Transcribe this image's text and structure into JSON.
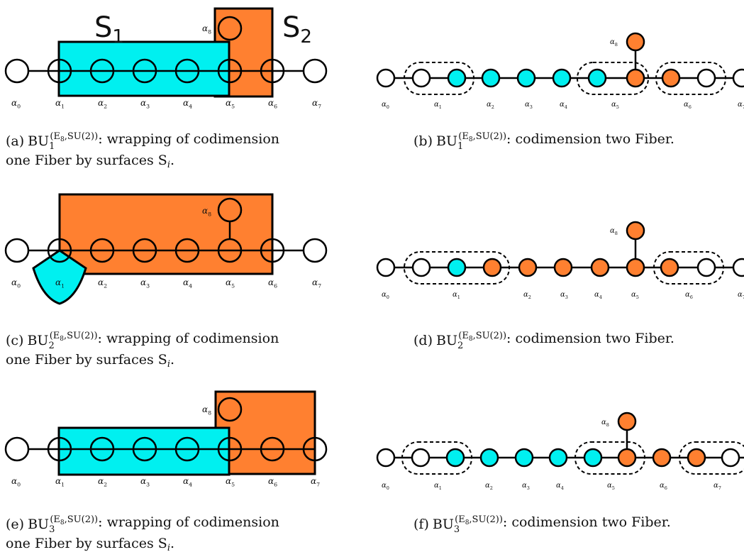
{
  "colors": {
    "cyan": "#00f0f0",
    "orange": "#ff8030",
    "white": "#ffffff",
    "stroke": "#000000"
  },
  "surface_labels": {
    "s1": "S",
    "s1_sub": "1",
    "s2": "S",
    "s2_sub": "2"
  },
  "alpha_symbol": "α",
  "alpha_indices": [
    "0",
    "1",
    "2",
    "3",
    "4",
    "5",
    "6",
    "7",
    "8"
  ],
  "captions": {
    "a": {
      "tag": "(a)",
      "text": ": wrapping of codimension",
      "line2": "one Fiber by surfaces S",
      "line2_sub": "i",
      "end": "."
    },
    "b": {
      "tag": "(b)",
      "text": ": codimension two Fiber."
    },
    "c": {
      "tag": "(c)",
      "text": ": wrapping of codimension",
      "line2": "one Fiber by surfaces S",
      "line2_sub": "i",
      "end": "."
    },
    "d": {
      "tag": "(d)",
      "text": ": codimension two Fiber."
    },
    "e": {
      "tag": "(e)",
      "text": ": wrapping of codimension",
      "line2": "one Fiber by surfaces S",
      "line2_sub": "i",
      "end": "."
    },
    "f": {
      "tag": "(f)",
      "text": ": codimension two Fiber."
    }
  },
  "bu": {
    "base": "BU",
    "sup": "(E",
    "sup_sub": "8",
    "sup_rest": ",SU(2))",
    "index_1": "1",
    "index_2": "2",
    "index_3": "3"
  }
}
